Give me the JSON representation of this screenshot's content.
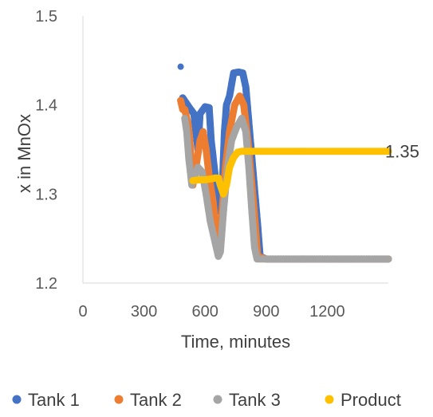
{
  "chart_data": {
    "type": "scatter",
    "title": "",
    "xlabel": "Time, minutes",
    "ylabel": "x in MnOx",
    "xlim": [
      0,
      1500
    ],
    "ylim": [
      1.2,
      1.5
    ],
    "x_ticks": [
      0,
      300,
      600,
      900,
      1200
    ],
    "y_ticks": [
      1.2,
      1.3,
      1.4,
      1.5
    ],
    "x_tick_labels": [
      "0",
      "300",
      "600",
      "900",
      "1200"
    ],
    "y_tick_labels": [
      "1.2",
      "1.3",
      "1.4",
      "1.5"
    ],
    "grid": false,
    "legend": "bottom",
    "annotations": [
      {
        "series": "Product",
        "label": "1.35",
        "x": 1500,
        "y": 1.348
      }
    ],
    "series": [
      {
        "name": "Tank 1",
        "color": "#4472C4",
        "points": [
          [
            480,
            1.443
          ],
          [
            490,
            1.408
          ],
          [
            520,
            1.398
          ],
          [
            545,
            1.39
          ],
          [
            555,
            1.37
          ],
          [
            565,
            1.35
          ],
          [
            575,
            1.39
          ],
          [
            600,
            1.398
          ],
          [
            620,
            1.397
          ],
          [
            630,
            1.36
          ],
          [
            645,
            1.33
          ],
          [
            660,
            1.3
          ],
          [
            675,
            1.28
          ],
          [
            685,
            1.31
          ],
          [
            695,
            1.37
          ],
          [
            705,
            1.4
          ],
          [
            720,
            1.41
          ],
          [
            740,
            1.436
          ],
          [
            765,
            1.437
          ],
          [
            785,
            1.436
          ],
          [
            800,
            1.42
          ],
          [
            815,
            1.38
          ],
          [
            830,
            1.34
          ],
          [
            845,
            1.3
          ],
          [
            860,
            1.26
          ],
          [
            870,
            1.23
          ],
          [
            900,
            1.227
          ],
          [
            1000,
            1.227
          ],
          [
            1100,
            1.227
          ],
          [
            1200,
            1.227
          ],
          [
            1300,
            1.227
          ],
          [
            1400,
            1.227
          ],
          [
            1500,
            1.227
          ]
        ]
      },
      {
        "name": "Tank 2",
        "color": "#ED7D31",
        "points": [
          [
            480,
            1.405
          ],
          [
            490,
            1.395
          ],
          [
            500,
            1.395
          ],
          [
            515,
            1.38
          ],
          [
            525,
            1.36
          ],
          [
            540,
            1.31
          ],
          [
            555,
            1.33
          ],
          [
            575,
            1.36
          ],
          [
            590,
            1.37
          ],
          [
            605,
            1.35
          ],
          [
            620,
            1.32
          ],
          [
            640,
            1.29
          ],
          [
            655,
            1.26
          ],
          [
            670,
            1.25
          ],
          [
            680,
            1.27
          ],
          [
            700,
            1.33
          ],
          [
            720,
            1.37
          ],
          [
            745,
            1.4
          ],
          [
            770,
            1.41
          ],
          [
            790,
            1.4
          ],
          [
            810,
            1.36
          ],
          [
            830,
            1.31
          ],
          [
            845,
            1.27
          ],
          [
            858,
            1.23
          ],
          [
            900,
            1.227
          ],
          [
            1000,
            1.227
          ],
          [
            1200,
            1.227
          ],
          [
            1500,
            1.227
          ]
        ]
      },
      {
        "name": "Tank 3",
        "color": "#A5A5A5",
        "points": [
          [
            500,
            1.385
          ],
          [
            510,
            1.37
          ],
          [
            520,
            1.34
          ],
          [
            535,
            1.31
          ],
          [
            550,
            1.32
          ],
          [
            565,
            1.33
          ],
          [
            585,
            1.325
          ],
          [
            605,
            1.3
          ],
          [
            625,
            1.27
          ],
          [
            645,
            1.25
          ],
          [
            665,
            1.23
          ],
          [
            675,
            1.235
          ],
          [
            690,
            1.28
          ],
          [
            710,
            1.33
          ],
          [
            730,
            1.36
          ],
          [
            755,
            1.375
          ],
          [
            780,
            1.385
          ],
          [
            800,
            1.37
          ],
          [
            815,
            1.33
          ],
          [
            830,
            1.28
          ],
          [
            843,
            1.24
          ],
          [
            855,
            1.227
          ],
          [
            900,
            1.227
          ],
          [
            1000,
            1.227
          ],
          [
            1200,
            1.227
          ],
          [
            1500,
            1.227
          ]
        ]
      },
      {
        "name": "Product",
        "color": "#FFC000",
        "points": [
          [
            540,
            1.315
          ],
          [
            570,
            1.316
          ],
          [
            600,
            1.316
          ],
          [
            630,
            1.317
          ],
          [
            650,
            1.318
          ],
          [
            665,
            1.318
          ],
          [
            675,
            1.31
          ],
          [
            690,
            1.3
          ],
          [
            705,
            1.31
          ],
          [
            720,
            1.33
          ],
          [
            740,
            1.341
          ],
          [
            760,
            1.347
          ],
          [
            780,
            1.348
          ],
          [
            820,
            1.348
          ],
          [
            900,
            1.348
          ],
          [
            1000,
            1.348
          ],
          [
            1100,
            1.348
          ],
          [
            1200,
            1.348
          ],
          [
            1300,
            1.348
          ],
          [
            1400,
            1.348
          ],
          [
            1500,
            1.348
          ]
        ]
      }
    ]
  }
}
